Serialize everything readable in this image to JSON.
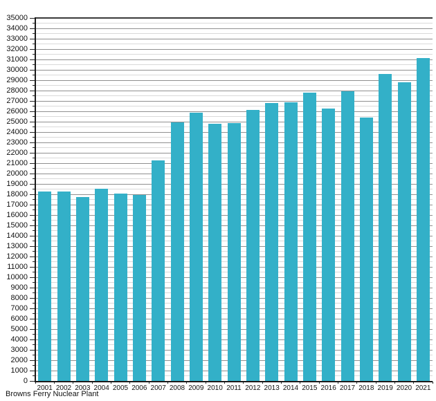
{
  "caption": "Browns Ferry Nuclear Plant",
  "chart_data": {
    "type": "bar",
    "title": "",
    "xlabel": "",
    "ylabel": "",
    "caption": "Browns Ferry Nuclear Plant",
    "categories": [
      "2001",
      "2002",
      "2003",
      "2004",
      "2005",
      "2006",
      "2007",
      "2008",
      "2009",
      "2010",
      "2011",
      "2012",
      "2013",
      "2014",
      "2015",
      "2016",
      "2017",
      "2018",
      "2019",
      "2020",
      "2021"
    ],
    "values": [
      18250,
      18280,
      17760,
      18520,
      18080,
      17950,
      21280,
      24930,
      25870,
      24790,
      24900,
      26130,
      26780,
      26880,
      27790,
      26300,
      27920,
      25410,
      29580,
      28830,
      31140
    ],
    "ylim": [
      0,
      35000
    ],
    "ytick_major": 1000,
    "ytick_minor": 500,
    "ytick_labels": [
      "0",
      "1000",
      "2000",
      "3000",
      "4000",
      "5000",
      "6000",
      "7000",
      "8000",
      "9000",
      "10000",
      "11000",
      "12000",
      "13000",
      "14000",
      "15000",
      "16000",
      "17000",
      "18000",
      "19000",
      "20000",
      "21000",
      "22000",
      "23000",
      "24000",
      "25000",
      "26000",
      "27000",
      "28000",
      "29000",
      "30000",
      "31000",
      "32000",
      "33000",
      "34000",
      "35000"
    ],
    "grid": "major and minor horizontal gridlines, no vertical",
    "legend": null,
    "bar_color": "#33b0c8",
    "major_grid_color": "#8f8f8f",
    "minor_grid_color": "#d9d9d9",
    "axis_color": "#1a1a1a",
    "text_color": "#111111"
  }
}
